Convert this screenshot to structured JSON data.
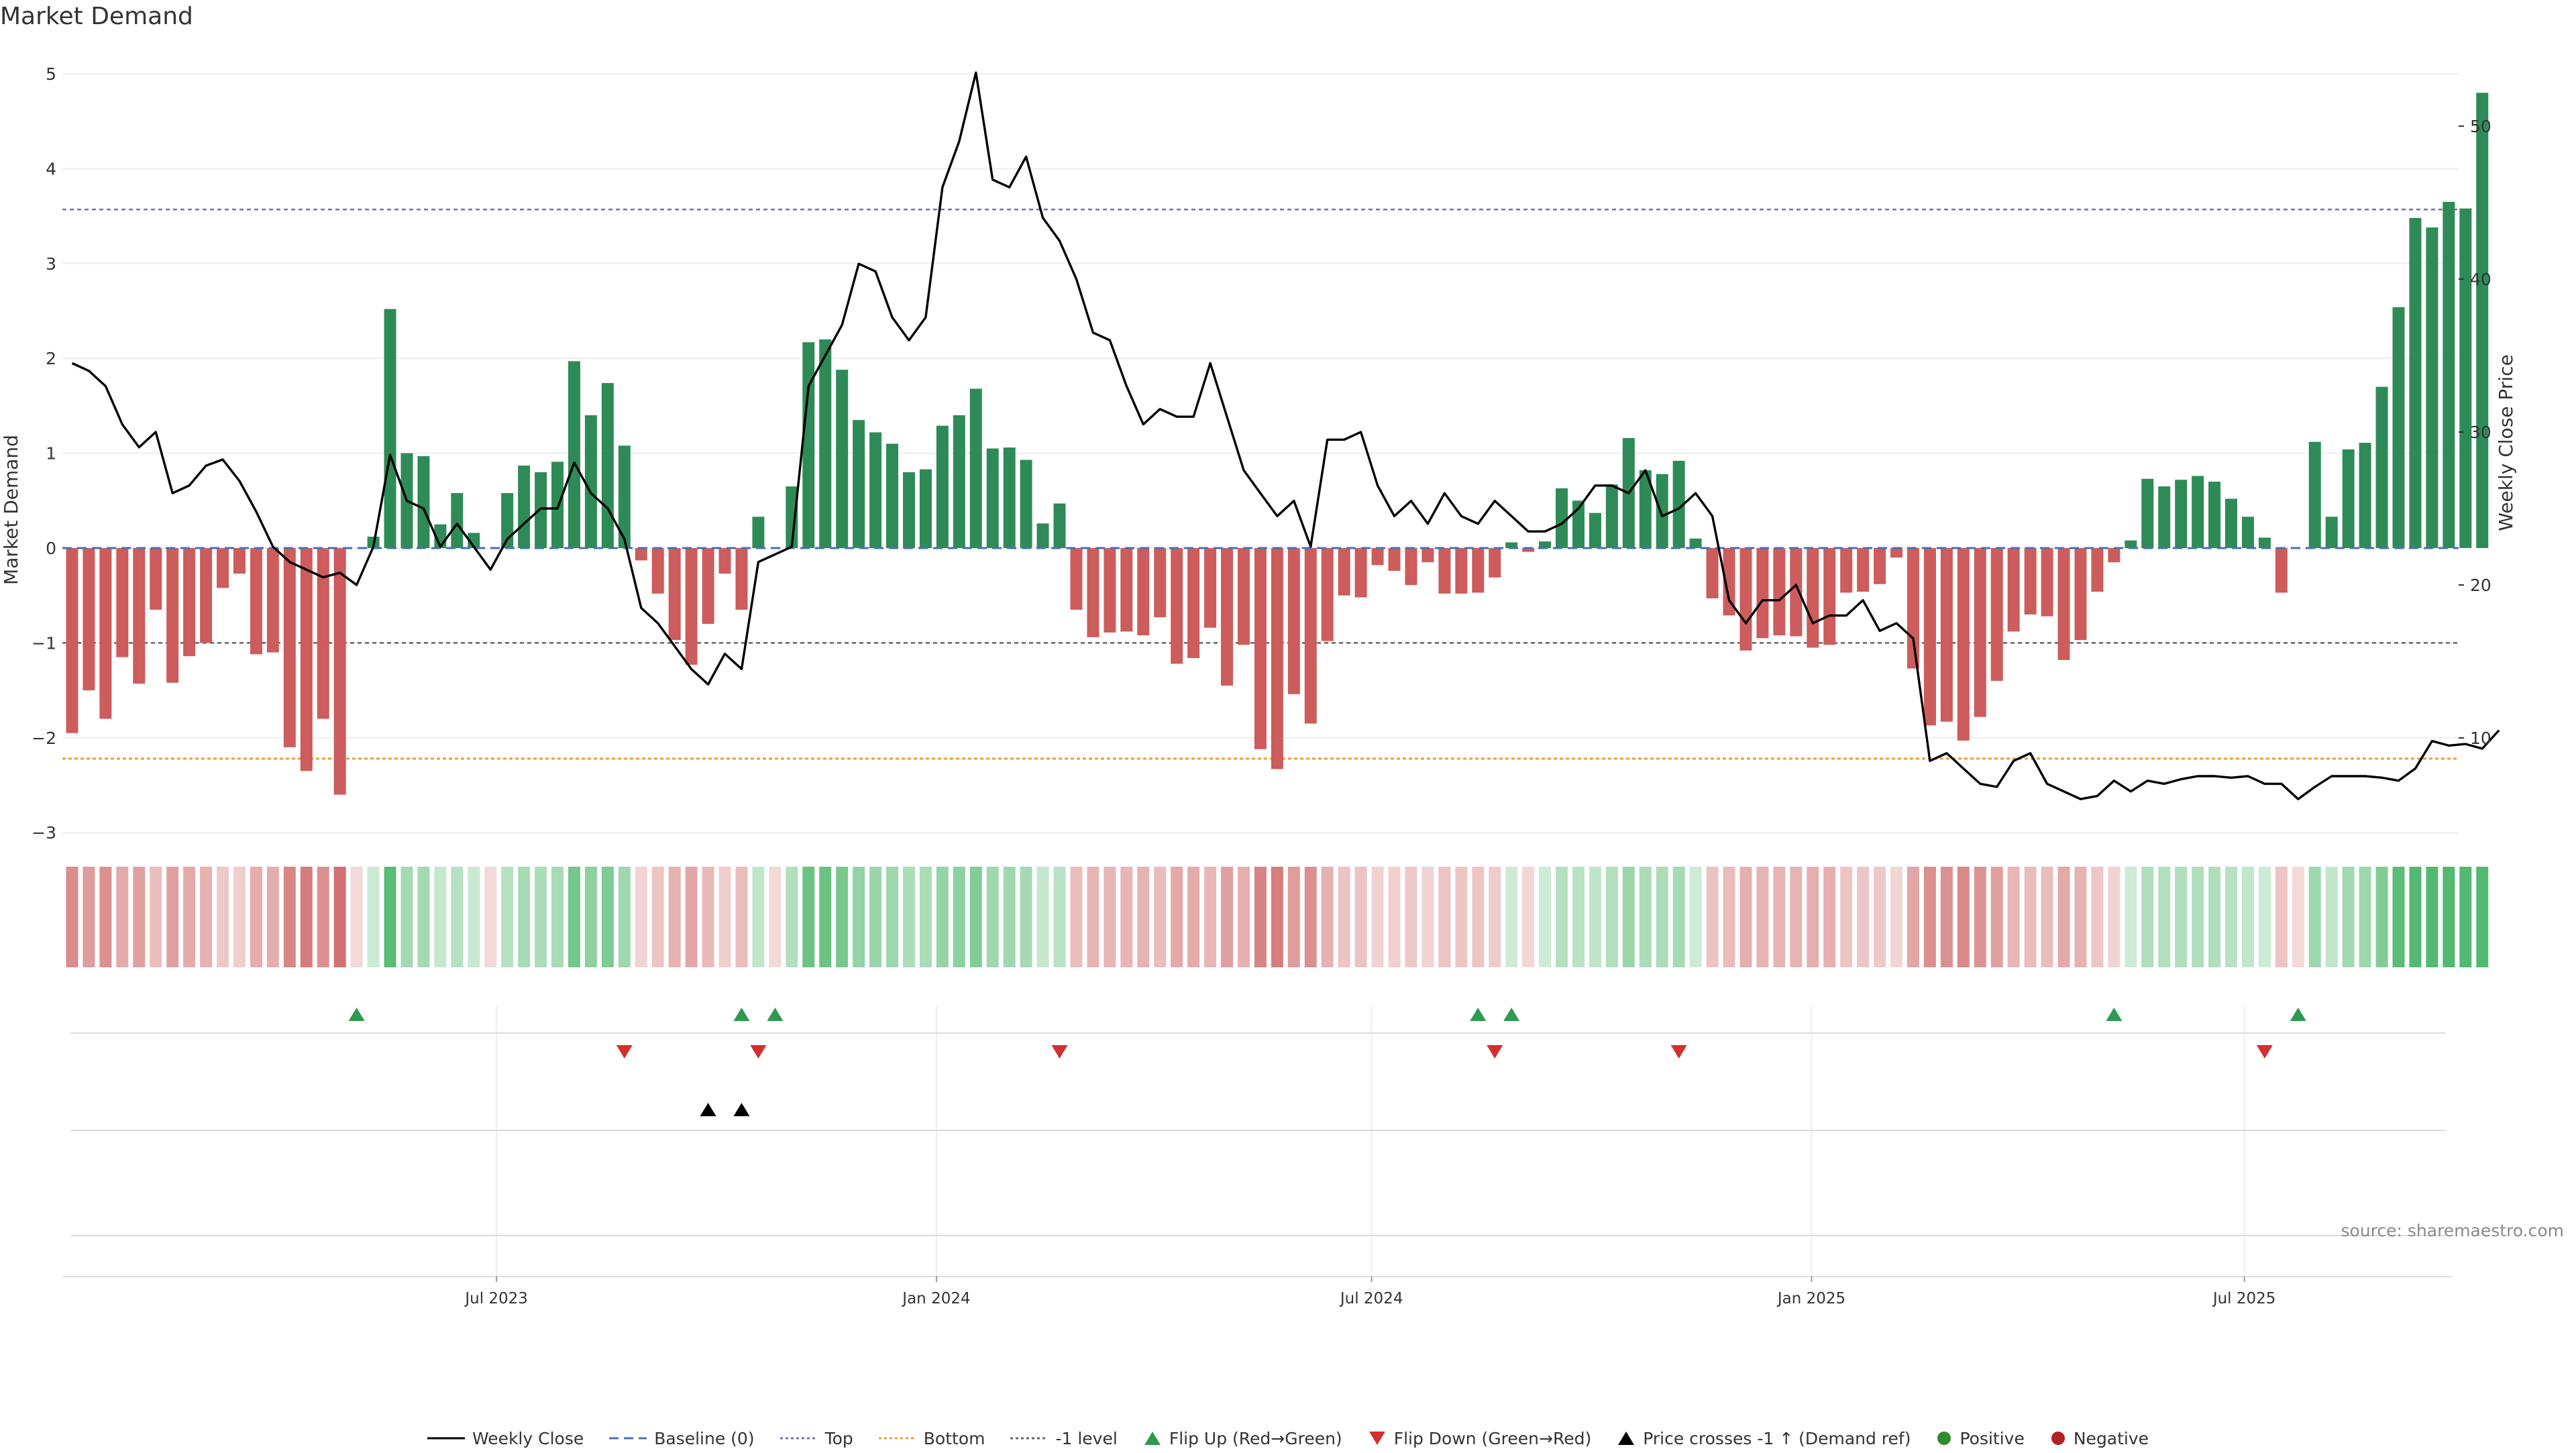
{
  "title": "Market Demand",
  "source": "source: sharemaestro.com",
  "legend": {
    "weekly_close": "Weekly Close",
    "baseline": "Baseline (0)",
    "top": "Top",
    "bottom": "Bottom",
    "minus1": "-1 level",
    "flip_up": "Flip Up (Red→Green)",
    "flip_down": "Flip Down (Green→Red)",
    "price_cross": "Price crosses -1 ↑ (Demand ref)",
    "positive": "Positive",
    "negative": "Negative"
  },
  "colors": {
    "positive": "#2e8b57",
    "negative": "#cd5c5c",
    "price_line": "#000000",
    "baseline": "#4a6fb5",
    "top": "#7b6fa8",
    "bottom": "#e3a03a",
    "minus1": "#666666",
    "flip_up": "#2e9a4f",
    "flip_down": "#d32f2f",
    "cross": "#000000",
    "pos_dot": "#2e8b2e",
    "neg_dot": "#b22222"
  },
  "chart_data": {
    "type": "bar",
    "start_date": "2023-01-01",
    "interval": "weekly",
    "x_ticks": [
      "Jul 2023",
      "Jan 2024",
      "Jul 2024",
      "Jan 2025",
      "Jul 2025"
    ],
    "x_tick_dates": [
      "2023-07-01",
      "2024-01-01",
      "2024-07-01",
      "2025-01-01",
      "2025-07-01"
    ],
    "y_left": {
      "label": "Market Demand",
      "range": [
        -3.3,
        5.1
      ],
      "ticks": [
        -3,
        -2,
        -1,
        0,
        1,
        2,
        3,
        4,
        5
      ]
    },
    "y_right": {
      "label": "Weekly Close Price",
      "range": [
        1,
        57
      ],
      "ticks": [
        10,
        20,
        30,
        40,
        50
      ]
    },
    "reference_lines": {
      "baseline": 0,
      "top": 3.57,
      "bottom": -2.22,
      "minus1": -1
    },
    "series": [
      {
        "name": "Market Demand",
        "values": [
          -1.95,
          -1.5,
          -1.8,
          -1.15,
          -1.43,
          -0.65,
          -1.42,
          -1.14,
          -1.0,
          -0.42,
          -0.27,
          -1.12,
          -1.1,
          -2.1,
          -2.35,
          -1.8,
          -2.6,
          0,
          0.12,
          2.52,
          1.0,
          0.97,
          0.25,
          0.58,
          0.16,
          0.0,
          0.58,
          0.87,
          0.8,
          0.91,
          1.97,
          1.4,
          1.74,
          1.08,
          -0.13,
          -0.48,
          -0.97,
          -1.23,
          -0.8,
          -0.27,
          -0.65,
          0.33,
          0.0,
          0.65,
          2.17,
          2.2,
          1.88,
          1.35,
          1.22,
          1.1,
          0.8,
          0.83,
          1.29,
          1.4,
          1.68,
          1.05,
          1.06,
          0.93,
          0.26,
          0.47,
          -0.65,
          -0.94,
          -0.89,
          -0.88,
          -0.92,
          -0.73,
          -1.22,
          -1.16,
          -0.84,
          -1.45,
          -1.02,
          -2.12,
          -2.33,
          -1.54,
          -1.85,
          -0.98,
          -0.5,
          -0.52,
          -0.18,
          -0.24,
          -0.39,
          -0.15,
          -0.48,
          -0.48,
          -0.47,
          -0.31,
          0.06,
          -0.04,
          0.07,
          0.63,
          0.5,
          0.37,
          0.67,
          1.16,
          0.82,
          0.78,
          0.92,
          0.1,
          -0.53,
          -0.71,
          -1.08,
          -0.95,
          -0.92,
          -0.93,
          -1.05,
          -1.02,
          -0.47,
          -0.46,
          -0.38,
          -0.1,
          -1.27,
          -1.87,
          -1.83,
          -2.03,
          -1.78,
          -1.4,
          -0.88,
          -0.7,
          -0.72,
          -1.18,
          -0.97,
          -0.46,
          -0.15,
          0.08,
          0.73,
          0.65,
          0.72,
          0.76,
          0.7,
          0.52,
          0.33,
          0.11,
          -0.47,
          0.0,
          1.12,
          0.33,
          1.04,
          1.11,
          1.7,
          2.54,
          3.48,
          3.38,
          3.65,
          3.58,
          4.8
        ]
      },
      {
        "name": "Weekly Close",
        "values": [
          34.5,
          34.0,
          33.0,
          30.5,
          29.0,
          30.0,
          26.0,
          26.5,
          27.8,
          28.2,
          26.8,
          24.8,
          22.5,
          21.5,
          21.0,
          20.5,
          20.8,
          20.0,
          22.5,
          28.5,
          25.5,
          25.0,
          22.5,
          24.0,
          22.5,
          21.0,
          23.0,
          24.0,
          25.0,
          25.0,
          28.0,
          26.0,
          25.0,
          23.0,
          18.5,
          17.5,
          16.0,
          14.5,
          13.5,
          15.5,
          14.5,
          21.5,
          22.0,
          22.5,
          33.0,
          35.0,
          37.0,
          41.0,
          40.5,
          37.5,
          36.0,
          37.5,
          46.0,
          49.0,
          53.5,
          46.5,
          46.0,
          48.0,
          44.0,
          42.5,
          40.0,
          36.5,
          36.0,
          33.0,
          30.5,
          31.5,
          31.0,
          31.0,
          34.5,
          31.0,
          27.5,
          26.0,
          24.5,
          25.5,
          22.5,
          29.5,
          29.5,
          30.0,
          26.5,
          24.5,
          25.5,
          24.0,
          26.0,
          24.5,
          24.0,
          25.5,
          24.5,
          23.5,
          23.5,
          24.0,
          25.0,
          26.5,
          26.5,
          26.0,
          27.5,
          24.5,
          25.0,
          26.0,
          24.5,
          19.0,
          17.5,
          19.0,
          19.0,
          20.0,
          17.5,
          18.0,
          18.0,
          19.0,
          17.0,
          17.5,
          16.5,
          8.5,
          9.0,
          8.0,
          7.0,
          6.8,
          8.5,
          9.0,
          7.0,
          6.5,
          6.0,
          6.2,
          7.2,
          6.5,
          7.2,
          7.0,
          7.3,
          7.5,
          7.5,
          7.4,
          7.5,
          7.0,
          7.0,
          6.0,
          6.8,
          7.5,
          7.5,
          7.5,
          7.4,
          7.2,
          8.0,
          9.8,
          9.5,
          9.6,
          9.3,
          10.5
        ]
      }
    ],
    "heat_strip": true,
    "events": {
      "flip_up": [
        17,
        40,
        42,
        84,
        86,
        122,
        133
      ],
      "flip_down": [
        33,
        41,
        59,
        85,
        96,
        131
      ],
      "price_cross_minus1": [
        38,
        40
      ]
    }
  }
}
